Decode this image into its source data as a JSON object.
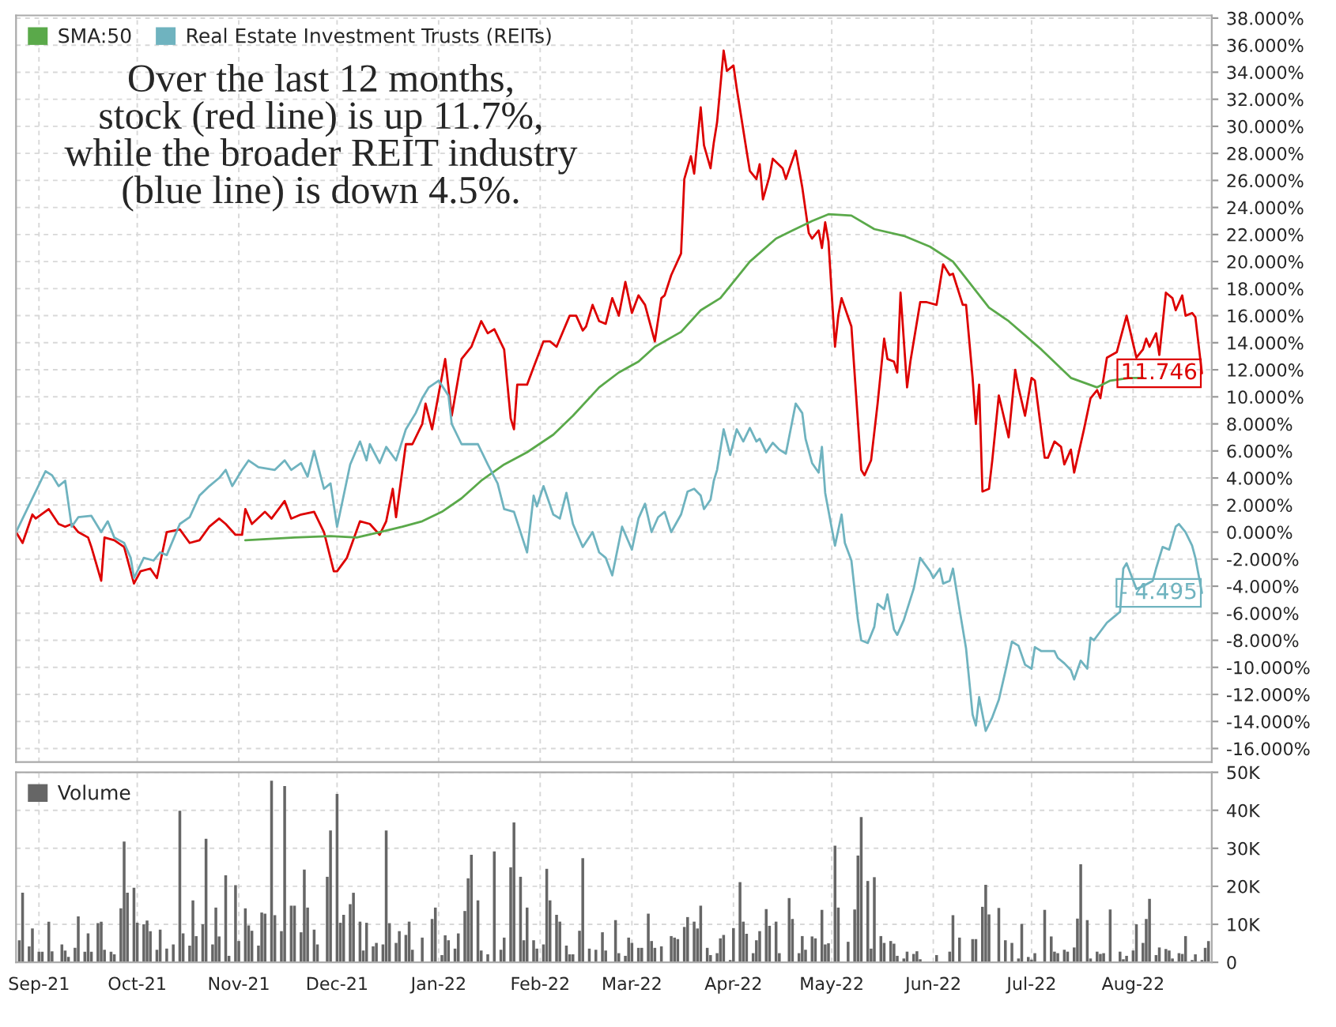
{
  "chart_data": [
    {
      "type": "line",
      "tick_labels": "y",
      "grid": true,
      "legend": "top left",
      "annotations": [
        "Over the last 12 months,\nstock (red line) is up 11.7%,\nwhile the broader REIT industry\n(blue line) is down 4.5%.",
        {
          "text": "11.746",
          "x": "2022-08-22",
          "y": 11.746
        },
        {
          "text": "- 4.495",
          "x": "2022-08-22",
          "y": -4.495
        }
      ],
      "xlim": [
        "2021-08-25",
        "2022-08-25"
      ],
      "xticks": [
        {
          "value": "2021-09-01",
          "label": null
        },
        {
          "value": "2021-10-01",
          "label": null
        },
        {
          "value": "2021-11-01",
          "label": null
        },
        {
          "value": "2021-12-01",
          "label": null
        },
        {
          "value": "2022-01-01",
          "label": null
        },
        {
          "value": "2022-02-01",
          "label": null
        },
        {
          "value": "2022-03-01",
          "label": null
        },
        {
          "value": "2022-04-01",
          "label": null
        },
        {
          "value": "2022-05-01",
          "label": null
        },
        {
          "value": "2022-06-01",
          "label": null
        },
        {
          "value": "2022-07-01",
          "label": null
        },
        {
          "value": "2022-08-01",
          "label": null
        }
      ],
      "ylim": [
        -17,
        38.2
      ],
      "yticks": [
        {
          "value": -16,
          "label": "-16.000%"
        },
        {
          "value": -14,
          "label": "-14.000%"
        },
        {
          "value": -12,
          "label": "-12.000%"
        },
        {
          "value": -10,
          "label": "-10.000%"
        },
        {
          "value": -8,
          "label": "-8.000%"
        },
        {
          "value": -6,
          "label": "-6.000%"
        },
        {
          "value": -4,
          "label": "-4.000%"
        },
        {
          "value": -2,
          "label": "-2.000%"
        },
        {
          "value": 0,
          "label": "0.000%"
        },
        {
          "value": 2,
          "label": "2.000%"
        },
        {
          "value": 4,
          "label": "4.000%"
        },
        {
          "value": 6,
          "label": "6.000%"
        },
        {
          "value": 8,
          "label": "8.000%"
        },
        {
          "value": 10,
          "label": "10.000%"
        },
        {
          "value": 12,
          "label": "12.000%"
        },
        {
          "value": 14,
          "label": "14.000%"
        },
        {
          "value": 16,
          "label": "16.000%"
        },
        {
          "value": 18,
          "label": "18.000%"
        },
        {
          "value": 20,
          "label": "20.000%"
        },
        {
          "value": 22,
          "label": "22.000%"
        },
        {
          "value": 24,
          "label": "24.000%"
        },
        {
          "value": 26,
          "label": "26.000%"
        },
        {
          "value": 28,
          "label": "28.000%"
        },
        {
          "value": 30,
          "label": "30.000%"
        },
        {
          "value": 32,
          "label": "32.000%"
        },
        {
          "value": 34,
          "label": "34.000%"
        },
        {
          "value": 36,
          "label": "36.000%"
        },
        {
          "value": 38,
          "label": "38.000%"
        }
      ],
      "series": [
        {
          "color": "#dd0000",
          "x": [
            "2021-08-25",
            "2021-08-27",
            "2021-08-30",
            "2021-08-31",
            "2021-09-04",
            "2021-09-07",
            "2021-09-09",
            "2021-09-11",
            "2021-09-13",
            "2021-09-16",
            "2021-09-17",
            "2021-09-20",
            "2021-09-21",
            "2021-09-24",
            "2021-09-27",
            "2021-09-30",
            "2021-10-02",
            "2021-10-05",
            "2021-10-07",
            "2021-10-10",
            "2021-10-14",
            "2021-10-17",
            "2021-10-20",
            "2021-10-23",
            "2021-10-26",
            "2021-10-28",
            "2021-10-31",
            "2021-11-02",
            "2021-11-03",
            "2021-11-05",
            "2021-11-09",
            "2021-11-11",
            "2021-11-15",
            "2021-11-17",
            "2021-11-20",
            "2021-11-24",
            "2021-11-27",
            "2021-11-30",
            "2021-12-01",
            "2021-12-04",
            "2021-12-08",
            "2021-12-11",
            "2021-12-14",
            "2021-12-16",
            "2021-12-18",
            "2021-12-19",
            "2021-12-22",
            "2021-12-24",
            "2021-12-27",
            "2021-12-28",
            "2021-12-30",
            "2022-01-03",
            "2022-01-05",
            "2022-01-08",
            "2022-01-11",
            "2022-01-14",
            "2022-01-16",
            "2022-01-18",
            "2022-01-21",
            "2022-01-23",
            "2022-01-24",
            "2022-01-25",
            "2022-01-28",
            "2022-01-30",
            "2022-02-02",
            "2022-02-04",
            "2022-02-06",
            "2022-02-10",
            "2022-02-12",
            "2022-02-14",
            "2022-02-15",
            "2022-02-17",
            "2022-02-19",
            "2022-02-21",
            "2022-02-23",
            "2022-02-25",
            "2022-02-27",
            "2022-03-01",
            "2022-03-03",
            "2022-03-05",
            "2022-03-08",
            "2022-03-10",
            "2022-03-11",
            "2022-03-13",
            "2022-03-16",
            "2022-03-17",
            "2022-03-19",
            "2022-03-20",
            "2022-03-22",
            "2022-03-23",
            "2022-03-25",
            "2022-03-26",
            "2022-03-27",
            "2022-03-29",
            "2022-03-30",
            "2022-04-01",
            "2022-04-02",
            "2022-04-05",
            "2022-04-06",
            "2022-04-08",
            "2022-04-09",
            "2022-04-10",
            "2022-04-12",
            "2022-04-13",
            "2022-04-16",
            "2022-04-17",
            "2022-04-20",
            "2022-04-22",
            "2022-04-24",
            "2022-04-25",
            "2022-04-27",
            "2022-04-28",
            "2022-04-29",
            "2022-04-30",
            "2022-05-02",
            "2022-05-03",
            "2022-05-04",
            "2022-05-07",
            "2022-05-10",
            "2022-05-11",
            "2022-05-13",
            "2022-05-15",
            "2022-05-17",
            "2022-05-18",
            "2022-05-20",
            "2022-05-21",
            "2022-05-22",
            "2022-05-24",
            "2022-05-25",
            "2022-05-28",
            "2022-05-30",
            "2022-06-02",
            "2022-06-04",
            "2022-06-06",
            "2022-06-07",
            "2022-06-10",
            "2022-06-11",
            "2022-06-13",
            "2022-06-14",
            "2022-06-15",
            "2022-06-16",
            "2022-06-18",
            "2022-06-19",
            "2022-06-21",
            "2022-06-24",
            "2022-06-26",
            "2022-06-27",
            "2022-06-29",
            "2022-07-01",
            "2022-07-02",
            "2022-07-05",
            "2022-07-06",
            "2022-07-08",
            "2022-07-10",
            "2022-07-11",
            "2022-07-13",
            "2022-07-14",
            "2022-07-17",
            "2022-07-19",
            "2022-07-21",
            "2022-07-22",
            "2022-07-24",
            "2022-07-27",
            "2022-07-30",
            "2022-08-02",
            "2022-08-04",
            "2022-08-05",
            "2022-08-06",
            "2022-08-08",
            "2022-08-09",
            "2022-08-11",
            "2022-08-13",
            "2022-08-14",
            "2022-08-16",
            "2022-08-17",
            "2022-08-19",
            "2022-08-20",
            "2022-08-22"
          ],
          "values": [
            0.0,
            -0.8,
            1.3,
            1.0,
            1.7,
            0.6,
            0.4,
            0.6,
            0.0,
            -0.4,
            -1.1,
            -3.6,
            -0.4,
            -0.6,
            -1.1,
            -3.8,
            -2.9,
            -2.7,
            -3.4,
            0.0,
            0.2,
            -0.8,
            -0.6,
            0.4,
            1.0,
            0.6,
            -0.2,
            -0.2,
            1.7,
            0.6,
            1.5,
            1.0,
            2.3,
            1.0,
            1.3,
            1.5,
            0.0,
            -2.9,
            -2.9,
            -1.9,
            0.8,
            0.6,
            -0.2,
            0.8,
            3.2,
            1.1,
            6.5,
            6.5,
            8.0,
            9.5,
            7.6,
            12.8,
            8.6,
            12.8,
            13.7,
            15.6,
            14.7,
            15.0,
            13.5,
            8.4,
            7.6,
            10.9,
            10.9,
            12.2,
            14.1,
            14.1,
            13.7,
            16.0,
            16.0,
            14.9,
            15.2,
            16.8,
            15.6,
            15.4,
            17.3,
            16.0,
            18.5,
            16.2,
            17.5,
            16.8,
            14.1,
            17.3,
            17.5,
            19.0,
            20.6,
            26.1,
            27.8,
            26.5,
            31.4,
            28.6,
            26.9,
            28.8,
            30.3,
            35.6,
            34.1,
            34.5,
            32.8,
            28.2,
            26.7,
            26.1,
            27.2,
            24.6,
            26.3,
            27.6,
            26.9,
            26.1,
            28.2,
            25.5,
            22.1,
            21.7,
            22.3,
            21.0,
            22.9,
            21.5,
            13.7,
            16.0,
            17.3,
            15.2,
            4.6,
            4.2,
            5.3,
            9.5,
            14.3,
            12.8,
            12.6,
            11.8,
            17.7,
            10.7,
            12.6,
            17.0,
            17.0,
            16.8,
            19.8,
            19.0,
            19.1,
            16.8,
            16.8,
            11.4,
            8.0,
            10.9,
            3.0,
            3.2,
            5.3,
            10.1,
            7.0,
            12.0,
            10.7,
            8.6,
            11.4,
            11.2,
            5.5,
            5.5,
            6.7,
            6.3,
            5.0,
            6.1,
            4.4,
            7.6,
            9.9,
            10.5,
            9.9,
            12.9,
            13.3,
            16.0,
            12.9,
            13.5,
            14.3,
            13.7,
            14.7,
            13.1,
            17.7,
            17.3,
            16.4,
            17.5,
            16.0,
            16.2,
            15.9,
            11.746
          ]
        },
        {
          "name": "SMA:50",
          "color": "#5aa94a",
          "x": [
            "2021-11-03",
            "2021-11-18",
            "2021-11-29",
            "2021-12-07",
            "2021-12-14",
            "2021-12-21",
            "2021-12-27",
            "2022-01-02",
            "2022-01-08",
            "2022-01-14",
            "2022-01-21",
            "2022-01-28",
            "2022-02-05",
            "2022-02-11",
            "2022-02-19",
            "2022-02-25",
            "2022-03-03",
            "2022-03-08",
            "2022-03-16",
            "2022-03-22",
            "2022-03-28",
            "2022-04-06",
            "2022-04-14",
            "2022-04-19",
            "2022-04-25",
            "2022-04-30",
            "2022-05-07",
            "2022-05-14",
            "2022-05-23",
            "2022-05-31",
            "2022-06-07",
            "2022-06-18",
            "2022-06-24",
            "2022-07-04",
            "2022-07-13",
            "2022-07-21",
            "2022-07-25",
            "2022-07-31",
            "2022-08-04"
          ],
          "values": [
            -0.6,
            -0.4,
            -0.3,
            -0.4,
            0.0,
            0.4,
            0.8,
            1.5,
            2.5,
            3.8,
            5.0,
            5.9,
            7.2,
            8.6,
            10.7,
            11.8,
            12.6,
            13.7,
            14.8,
            16.4,
            17.3,
            20.0,
            21.7,
            22.3,
            23.0,
            23.5,
            23.4,
            22.4,
            21.9,
            21.1,
            20.0,
            16.6,
            15.6,
            13.5,
            11.4,
            10.7,
            11.2,
            11.4,
            11.4
          ]
        },
        {
          "name": "Real Estate Investment Trusts (REITs)",
          "color": "#6fb3bf",
          "x": [
            "2021-08-25",
            "2021-08-28",
            "2021-08-31",
            "2021-09-03",
            "2021-09-05",
            "2021-09-07",
            "2021-09-09",
            "2021-09-11",
            "2021-09-13",
            "2021-09-17",
            "2021-09-20",
            "2021-09-22",
            "2021-09-24",
            "2021-09-27",
            "2021-09-29",
            "2021-09-30",
            "2021-10-03",
            "2021-10-06",
            "2021-10-08",
            "2021-10-10",
            "2021-10-14",
            "2021-10-17",
            "2021-10-20",
            "2021-10-23",
            "2021-10-26",
            "2021-10-28",
            "2021-10-30",
            "2021-11-02",
            "2021-11-04",
            "2021-11-07",
            "2021-11-12",
            "2021-11-15",
            "2021-11-17",
            "2021-11-20",
            "2021-11-22",
            "2021-11-24",
            "2021-11-27",
            "2021-11-29",
            "2021-12-01",
            "2021-12-05",
            "2021-12-08",
            "2021-12-10",
            "2021-12-11",
            "2021-12-14",
            "2021-12-16",
            "2021-12-19",
            "2021-12-22",
            "2021-12-25",
            "2021-12-27",
            "2021-12-29",
            "2022-01-01",
            "2022-01-04",
            "2022-01-05",
            "2022-01-08",
            "2022-01-11",
            "2022-01-13",
            "2022-01-16",
            "2022-01-19",
            "2022-01-21",
            "2022-01-24",
            "2022-01-28",
            "2022-01-30",
            "2022-01-31",
            "2022-02-02",
            "2022-02-05",
            "2022-02-07",
            "2022-02-09",
            "2022-02-11",
            "2022-02-14",
            "2022-02-17",
            "2022-02-19",
            "2022-02-21",
            "2022-02-23",
            "2022-02-26",
            "2022-03-01",
            "2022-03-03",
            "2022-03-05",
            "2022-03-07",
            "2022-03-09",
            "2022-03-11",
            "2022-03-13",
            "2022-03-16",
            "2022-03-18",
            "2022-03-20",
            "2022-03-22",
            "2022-03-23",
            "2022-03-25",
            "2022-03-26",
            "2022-03-27",
            "2022-03-29",
            "2022-03-31",
            "2022-04-02",
            "2022-04-04",
            "2022-04-06",
            "2022-04-08",
            "2022-04-09",
            "2022-04-11",
            "2022-04-13",
            "2022-04-15",
            "2022-04-17",
            "2022-04-20",
            "2022-04-22",
            "2022-04-23",
            "2022-04-25",
            "2022-04-27",
            "2022-04-28",
            "2022-04-29",
            "2022-05-02",
            "2022-05-04",
            "2022-05-05",
            "2022-05-07",
            "2022-05-09",
            "2022-05-10",
            "2022-05-12",
            "2022-05-14",
            "2022-05-15",
            "2022-05-17",
            "2022-05-18",
            "2022-05-20",
            "2022-05-21",
            "2022-05-23",
            "2022-05-26",
            "2022-05-28",
            "2022-05-31",
            "2022-06-01",
            "2022-06-03",
            "2022-06-04",
            "2022-06-06",
            "2022-06-07",
            "2022-06-09",
            "2022-06-11",
            "2022-06-13",
            "2022-06-14",
            "2022-06-15",
            "2022-06-17",
            "2022-06-19",
            "2022-06-21",
            "2022-06-23",
            "2022-06-25",
            "2022-06-27",
            "2022-06-29",
            "2022-07-01",
            "2022-07-02",
            "2022-07-04",
            "2022-07-08",
            "2022-07-09",
            "2022-07-11",
            "2022-07-13",
            "2022-07-14",
            "2022-07-16",
            "2022-07-18",
            "2022-07-19",
            "2022-07-20",
            "2022-07-24",
            "2022-07-26",
            "2022-07-28",
            "2022-07-29",
            "2022-07-30",
            "2022-08-02",
            "2022-08-04",
            "2022-08-07",
            "2022-08-08",
            "2022-08-10",
            "2022-08-12",
            "2022-08-14",
            "2022-08-15",
            "2022-08-17",
            "2022-08-19",
            "2022-08-20",
            "2022-08-22"
          ],
          "values": [
            0.0,
            1.5,
            3.0,
            4.5,
            4.2,
            3.4,
            3.8,
            0.4,
            1.1,
            1.2,
            0.0,
            0.8,
            -0.4,
            -0.8,
            -1.9,
            -3.4,
            -1.9,
            -2.1,
            -1.5,
            -1.7,
            0.6,
            1.1,
            2.7,
            3.4,
            4.0,
            4.6,
            3.4,
            4.6,
            5.3,
            4.8,
            4.6,
            5.3,
            4.6,
            5.1,
            4.1,
            6.0,
            3.2,
            3.6,
            0.4,
            5.0,
            6.7,
            5.3,
            6.5,
            5.1,
            6.3,
            5.3,
            7.6,
            8.8,
            9.9,
            10.7,
            11.2,
            10.1,
            8.0,
            6.5,
            6.5,
            6.5,
            5.0,
            3.6,
            1.7,
            1.5,
            -1.5,
            2.7,
            1.9,
            3.4,
            1.3,
            1.0,
            2.9,
            0.6,
            -1.1,
            0.0,
            -1.5,
            -1.9,
            -3.2,
            0.4,
            -1.3,
            1.0,
            2.1,
            0.0,
            1.1,
            1.5,
            0.0,
            1.3,
            3.0,
            3.2,
            2.7,
            1.7,
            2.4,
            3.8,
            4.6,
            7.6,
            5.7,
            7.6,
            6.7,
            7.7,
            6.7,
            6.9,
            5.9,
            6.6,
            6.1,
            5.8,
            9.5,
            8.8,
            6.9,
            5.1,
            4.4,
            6.3,
            2.9,
            -1.0,
            1.3,
            -0.8,
            -2.1,
            -6.5,
            -8.0,
            -8.2,
            -7.0,
            -5.3,
            -5.7,
            -4.6,
            -7.2,
            -7.6,
            -6.5,
            -4.2,
            -1.9,
            -2.9,
            -3.4,
            -2.7,
            -3.8,
            -3.6,
            -2.7,
            -5.7,
            -8.6,
            -13.5,
            -14.3,
            -12.2,
            -14.7,
            -13.7,
            -12.4,
            -10.3,
            -8.1,
            -8.4,
            -9.8,
            -10.1,
            -8.5,
            -8.8,
            -8.8,
            -9.3,
            -9.7,
            -10.2,
            -10.9,
            -9.5,
            -10.1,
            -7.8,
            -8.0,
            -6.7,
            -6.3,
            -5.9,
            -2.7,
            -2.3,
            -4.2,
            -4.0,
            -3.6,
            -2.7,
            -1.1,
            -1.3,
            0.4,
            0.6,
            0.0,
            -1.0,
            -1.9,
            -4.495
          ]
        }
      ]
    },
    {
      "type": "bar",
      "legend": "top left",
      "grid": true,
      "xlim": [
        "2021-08-25",
        "2022-08-25"
      ],
      "xticks": [
        {
          "value": "2021-09-01",
          "label": "Sep-21"
        },
        {
          "value": "2021-10-01",
          "label": "Oct-21"
        },
        {
          "value": "2021-11-01",
          "label": "Nov-21"
        },
        {
          "value": "2021-12-01",
          "label": "Dec-21"
        },
        {
          "value": "2022-01-01",
          "label": "Jan-22"
        },
        {
          "value": "2022-02-01",
          "label": "Feb-22"
        },
        {
          "value": "2022-03-01",
          "label": "Mar-22"
        },
        {
          "value": "2022-04-01",
          "label": "Apr-22"
        },
        {
          "value": "2022-05-01",
          "label": "May-22"
        },
        {
          "value": "2022-06-01",
          "label": "Jun-22"
        },
        {
          "value": "2022-07-01",
          "label": "Jul-22"
        },
        {
          "value": "2022-08-01",
          "label": "Aug-22"
        }
      ],
      "ylim": [
        0,
        50000
      ],
      "yticks": [
        0,
        {
          "value": 10000,
          "label": "10K"
        },
        {
          "value": 20000,
          "label": "20K"
        },
        {
          "value": 30000,
          "label": "30K"
        },
        {
          "value": 40000,
          "label": "40K"
        },
        {
          "value": 50000,
          "label": "50K"
        }
      ],
      "series": [
        {
          "name": "Volume",
          "color": "#666666",
          "x": [
            "2021-08-26",
            "2021-08-27",
            "2021-08-29",
            "2021-08-30",
            "2021-09-01",
            "2021-09-02",
            "2021-09-04",
            "2021-09-05",
            "2021-09-08",
            "2021-09-09",
            "2021-09-10",
            "2021-09-12",
            "2021-09-13",
            "2021-09-15",
            "2021-09-16",
            "2021-09-17",
            "2021-09-19",
            "2021-09-20",
            "2021-09-21",
            "2021-09-23",
            "2021-09-24",
            "2021-09-26",
            "2021-09-27",
            "2021-09-28",
            "2021-09-30",
            "2021-10-01",
            "2021-10-03",
            "2021-10-04",
            "2021-10-05",
            "2021-10-07",
            "2021-10-08",
            "2021-10-10",
            "2021-10-12",
            "2021-10-14",
            "2021-10-15",
            "2021-10-17",
            "2021-10-18",
            "2021-10-19",
            "2021-10-21",
            "2021-10-22",
            "2021-10-24",
            "2021-10-25",
            "2021-10-26",
            "2021-10-28",
            "2021-10-29",
            "2021-10-31",
            "2021-11-01",
            "2021-11-03",
            "2021-11-04",
            "2021-11-05",
            "2021-11-07",
            "2021-11-08",
            "2021-11-09",
            "2021-11-11",
            "2021-11-12",
            "2021-11-14",
            "2021-11-15",
            "2021-11-17",
            "2021-11-18",
            "2021-11-20",
            "2021-11-21",
            "2021-11-22",
            "2021-11-24",
            "2021-11-25",
            "2021-11-28",
            "2021-11-29",
            "2021-12-01",
            "2021-12-02",
            "2021-12-03",
            "2021-12-05",
            "2021-12-06",
            "2021-12-08",
            "2021-12-09",
            "2021-12-10",
            "2021-12-12",
            "2021-12-13",
            "2021-12-15",
            "2021-12-16",
            "2021-12-17",
            "2021-12-19",
            "2021-12-20",
            "2021-12-22",
            "2021-12-23",
            "2021-12-24",
            "2021-12-27",
            "2021-12-30",
            "2021-12-31",
            "2022-01-02",
            "2022-01-03",
            "2022-01-04",
            "2022-01-06",
            "2022-01-07",
            "2022-01-09",
            "2022-01-10",
            "2022-01-11",
            "2022-01-13",
            "2022-01-14",
            "2022-01-16",
            "2022-01-18",
            "2022-01-20",
            "2022-01-21",
            "2022-01-23",
            "2022-01-24",
            "2022-01-26",
            "2022-01-27",
            "2022-01-28",
            "2022-01-30",
            "2022-01-31",
            "2022-02-02",
            "2022-02-03",
            "2022-02-04",
            "2022-02-06",
            "2022-02-07",
            "2022-02-09",
            "2022-02-10",
            "2022-02-11",
            "2022-02-13",
            "2022-02-14",
            "2022-02-16",
            "2022-02-18",
            "2022-02-20",
            "2022-02-21",
            "2022-02-24",
            "2022-02-25",
            "2022-02-27",
            "2022-02-28",
            "2022-03-01",
            "2022-03-03",
            "2022-03-04",
            "2022-03-06",
            "2022-03-07",
            "2022-03-08",
            "2022-03-10",
            "2022-03-13",
            "2022-03-14",
            "2022-03-15",
            "2022-03-17",
            "2022-03-18",
            "2022-03-20",
            "2022-03-21",
            "2022-03-22",
            "2022-03-24",
            "2022-03-25",
            "2022-03-27",
            "2022-03-28",
            "2022-03-29",
            "2022-03-31",
            "2022-04-01",
            "2022-04-03",
            "2022-04-04",
            "2022-04-05",
            "2022-04-07",
            "2022-04-08",
            "2022-04-09",
            "2022-04-11",
            "2022-04-12",
            "2022-04-14",
            "2022-04-15",
            "2022-04-18",
            "2022-04-19",
            "2022-04-21",
            "2022-04-22",
            "2022-04-23",
            "2022-04-25",
            "2022-04-26",
            "2022-04-28",
            "2022-04-29",
            "2022-04-30",
            "2022-05-02",
            "2022-05-03",
            "2022-05-06",
            "2022-05-08",
            "2022-05-09",
            "2022-05-10",
            "2022-05-12",
            "2022-05-13",
            "2022-05-14",
            "2022-05-16",
            "2022-05-17",
            "2022-05-19",
            "2022-05-20",
            "2022-05-21",
            "2022-05-23",
            "2022-05-24",
            "2022-05-26",
            "2022-05-27",
            "2022-05-28",
            "2022-06-02",
            "2022-06-03",
            "2022-06-06",
            "2022-06-07",
            "2022-06-09",
            "2022-06-13",
            "2022-06-14",
            "2022-06-16",
            "2022-06-17",
            "2022-06-18",
            "2022-06-21",
            "2022-06-23",
            "2022-06-25",
            "2022-06-27",
            "2022-06-28",
            "2022-06-30",
            "2022-07-01",
            "2022-07-02",
            "2022-07-05",
            "2022-07-07",
            "2022-07-08",
            "2022-07-09",
            "2022-07-11",
            "2022-07-12",
            "2022-07-14",
            "2022-07-15",
            "2022-07-16",
            "2022-07-18",
            "2022-07-19",
            "2022-07-21",
            "2022-07-22",
            "2022-07-23",
            "2022-07-25",
            "2022-07-28",
            "2022-07-29",
            "2022-07-30",
            "2022-08-01",
            "2022-08-02",
            "2022-08-04",
            "2022-08-05",
            "2022-08-06",
            "2022-08-08",
            "2022-08-09",
            "2022-08-11",
            "2022-08-12",
            "2022-08-13",
            "2022-08-15",
            "2022-08-16",
            "2022-08-17",
            "2022-08-19",
            "2022-08-20",
            "2022-08-22",
            "2022-08-23",
            "2022-08-24"
          ],
          "values": [
            5800,
            18300,
            4200,
            8900,
            2800,
            2800,
            10700,
            2900,
            4700,
            3100,
            1400,
            3800,
            12100,
            2800,
            7600,
            2800,
            10300,
            10700,
            3300,
            2800,
            2100,
            14200,
            31800,
            18300,
            19600,
            10400,
            10000,
            11000,
            8200,
            3300,
            8600,
            3600,
            4700,
            39900,
            7600,
            4400,
            16300,
            6900,
            10000,
            32500,
            4700,
            14400,
            6800,
            22900,
            1700,
            20300,
            5600,
            14200,
            9700,
            8300,
            4400,
            13100,
            12800,
            47800,
            12400,
            8200,
            46400,
            14900,
            14900,
            7900,
            24400,
            14400,
            8600,
            4700,
            22500,
            34700,
            44300,
            10400,
            12500,
            15300,
            18300,
            10700,
            3100,
            10400,
            4200,
            5100,
            4700,
            34700,
            10300,
            5100,
            8200,
            7200,
            10700,
            3300,
            6500,
            11400,
            14400,
            1900,
            7100,
            5800,
            3600,
            7600,
            13500,
            22100,
            28300,
            16300,
            3100,
            2100,
            29200,
            3300,
            6500,
            25000,
            36800,
            22500,
            5800,
            14400,
            5800,
            3600,
            4700,
            24600,
            16300,
            12500,
            10700,
            4400,
            2100,
            2100,
            8300,
            27400,
            3600,
            3300,
            7900,
            3100,
            11100,
            2400,
            1700,
            6500,
            5100,
            3800,
            3800,
            12800,
            5600,
            3800,
            4200,
            6900,
            6500,
            6100,
            9300,
            11900,
            10700,
            8900,
            14900,
            3800,
            1900,
            2400,
            6300,
            7200,
            600,
            9000,
            21100,
            10700,
            7500,
            2400,
            5800,
            8200,
            14000,
            9600,
            10700,
            2400,
            16900,
            11400,
            2400,
            6900,
            3300,
            6800,
            6300,
            13800,
            4700,
            5000,
            30700,
            14400,
            5400,
            13900,
            28100,
            38200,
            21400,
            3600,
            22400,
            6900,
            5100,
            5600,
            4900,
            1700,
            1000,
            2800,
            2200,
            2900,
            800,
            1900,
            200,
            2800,
            12400,
            6500,
            6100,
            6100,
            14600,
            20400,
            12600,
            14300,
            5800,
            5100,
            1000,
            10100,
            1400,
            700,
            2400,
            13800,
            6800,
            2800,
            2400,
            3300,
            2800,
            3900,
            11500,
            25800,
            11100,
            1000,
            2800,
            2200,
            2400,
            13900,
            2800,
            800,
            1700,
            3100,
            10000,
            5100,
            11400,
            16700,
            1900,
            3900,
            3500,
            3100,
            1000,
            2400,
            2200,
            6900,
            600,
            2100,
            600,
            3800,
            5600
          ]
        }
      ]
    }
  ]
}
